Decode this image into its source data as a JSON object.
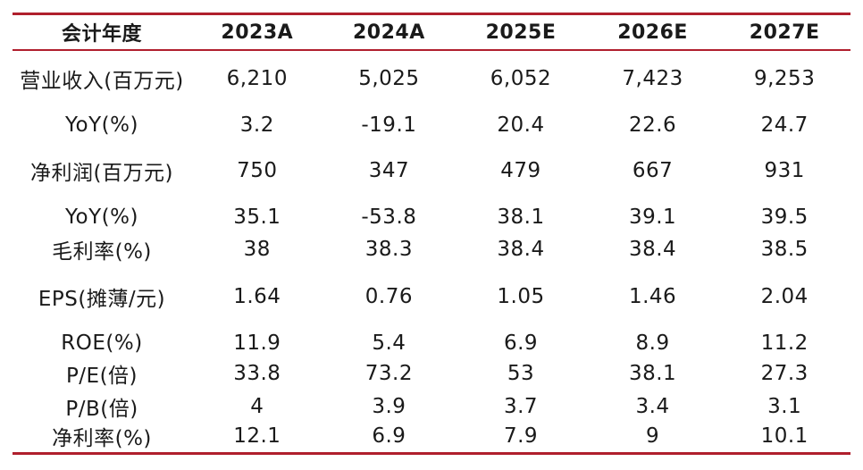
{
  "table": {
    "columns": [
      "会计年度",
      "2023A",
      "2024A",
      "2025E",
      "2026E",
      "2027E"
    ],
    "rows": [
      {
        "label": "营业收入(百万元)",
        "values": [
          "6,210",
          "5,025",
          "6,052",
          "7,423",
          "9,253"
        ]
      },
      {
        "label": "YoY(%)",
        "values": [
          "3.2",
          "-19.1",
          "20.4",
          "22.6",
          "24.7"
        ]
      },
      {
        "label": "净利润(百万元)",
        "values": [
          "750",
          "347",
          "479",
          "667",
          "931"
        ]
      },
      {
        "label": "YoY(%)",
        "values": [
          "35.1",
          "-53.8",
          "38.1",
          "39.1",
          "39.5"
        ]
      },
      {
        "label": "毛利率(%)",
        "values": [
          "38",
          "38.3",
          "38.4",
          "38.4",
          "38.5"
        ]
      },
      {
        "label": "EPS(摊薄/元)",
        "values": [
          "1.64",
          "0.76",
          "1.05",
          "1.46",
          "2.04"
        ]
      },
      {
        "label": "ROE(%)",
        "values": [
          "11.9",
          "5.4",
          "6.9",
          "8.9",
          "11.2"
        ]
      },
      {
        "label": "P/E(倍)",
        "values": [
          "33.8",
          "73.2",
          "53",
          "38.1",
          "27.3"
        ]
      },
      {
        "label": "P/B(倍)",
        "values": [
          "4",
          "3.9",
          "3.7",
          "3.4",
          "3.1"
        ]
      },
      {
        "label": "净利率(%)",
        "values": [
          "12.1",
          "6.9",
          "7.9",
          "9",
          "10.1"
        ]
      }
    ]
  },
  "colors": {
    "rule": "#b01f2d",
    "text": "#1a1a1a"
  }
}
